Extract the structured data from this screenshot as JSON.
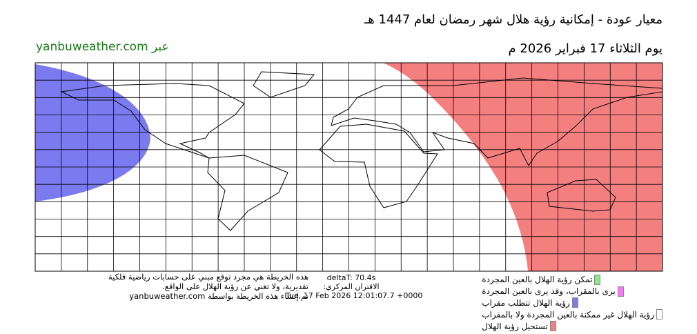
{
  "header": {
    "title": "معيار عودة - إمكانية رؤية هلال شهر رمضان لعام 1447 هـ",
    "date": "يوم الثلاثاء 17 فبراير 2026 م",
    "source": "yanbuweather.com عبر"
  },
  "notes": [
    "هذه الخريطة هي مجرد توقع مبني على حسابات رياضية فلكية",
    "تقديرية، ولا تغني عن رؤية الهلال على الواقع.",
    "تم إنشاء هذه الخريطة بواسطة yanbuweather.com"
  ],
  "calc": {
    "deltaT": "deltaT: 70.4s",
    "conjunction_label": "الاقتران المركزي:",
    "conjunction_time": "Tue, 17 Feb 2026 12:01:07.7 +0000"
  },
  "legend": [
    {
      "label": "تمكن رؤية الهلال بالعين المجردة",
      "color": "#7ef07e"
    },
    {
      "label": "يرى بالمقراب، وقد يرى بالعين المجردة",
      "color": "#f07ef0"
    },
    {
      "label": "رؤية الهلال تتطلب مقراب",
      "color": "#7b7bef"
    },
    {
      "label": "رؤية الهلال غير ممكنة بالعين المجردة ولا بالمقراب",
      "color": "#ffffff"
    },
    {
      "label": "تستحيل رؤية الهلال",
      "color": "#f47f7f"
    }
  ]
}
